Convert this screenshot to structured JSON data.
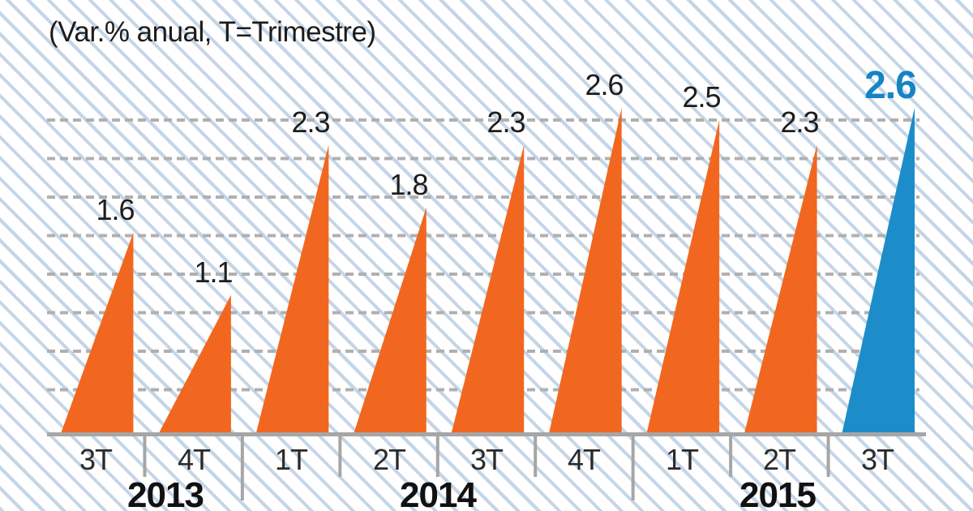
{
  "header": {
    "title": "(Var.% anual, T=Trimestre)"
  },
  "chart_data": {
    "type": "bar",
    "style": "triangle-peak-bars",
    "title": "(Var.% anual, T=Trimestre)",
    "categories": [
      "3T",
      "4T",
      "1T",
      "2T",
      "3T",
      "4T",
      "1T",
      "2T",
      "3T"
    ],
    "values": [
      1.6,
      1.1,
      2.3,
      1.8,
      2.3,
      2.6,
      2.5,
      2.3,
      2.6
    ],
    "value_labels": [
      "1.6",
      "1.1",
      "2.3",
      "1.8",
      "2.3",
      "2.6",
      "2.5",
      "2.3",
      "2.6"
    ],
    "year_groups": [
      {
        "label": "2013",
        "start_index": 0,
        "end_index": 1
      },
      {
        "label": "2014",
        "start_index": 2,
        "end_index": 5
      },
      {
        "label": "2015",
        "start_index": 6,
        "end_index": 8
      }
    ],
    "highlight_index": 8,
    "xlabel": "",
    "ylabel": "",
    "ylim": [
      0,
      3
    ],
    "grid": "horizontal-dashed",
    "gridline_count": 8,
    "legend": "none",
    "colors": {
      "bar": "#f2671f",
      "highlight_bar": "#1d8dca",
      "highlight_label": "#1583c4",
      "value_label": "#1d1d1d",
      "axis": "#a6a6a6",
      "gridline": "#b0b0b0",
      "tick_label": "#2a2a2a",
      "year_label": "#111111",
      "background_stripe": "#ccdbe9"
    }
  }
}
